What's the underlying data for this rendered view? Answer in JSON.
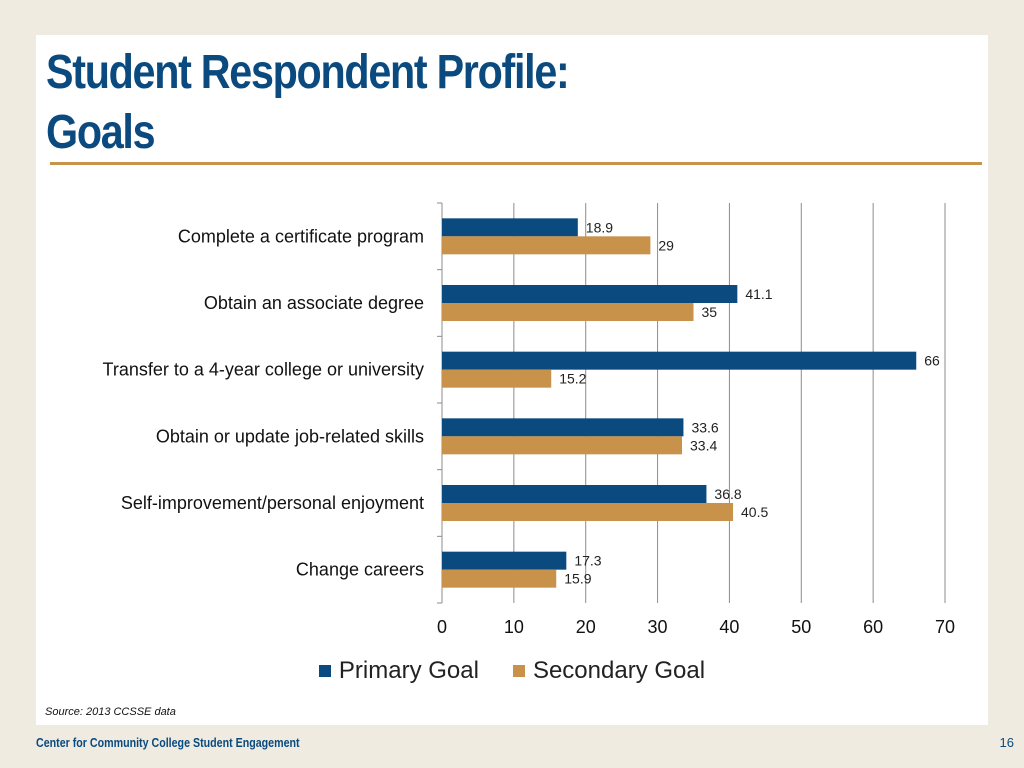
{
  "title_line1": "Student Respondent Profile:",
  "title_line2": "Goals",
  "source": "Source: 2013 CCSSE data",
  "footer": {
    "org": "Center for Community College Student Engagement",
    "page_number": "16"
  },
  "colors": {
    "primary": "#0b4a7e",
    "secondary": "#c8924a",
    "title": "#0a4a7f",
    "rule": "#c8944a"
  },
  "chart_data": {
    "type": "bar",
    "orientation": "horizontal",
    "categories": [
      "Complete a certificate program",
      "Obtain an associate degree",
      "Transfer to a 4-year college or university",
      "Obtain or update job-related skills",
      "Self-improvement/personal enjoyment",
      "Change careers"
    ],
    "series": [
      {
        "name": "Primary Goal",
        "values": [
          18.9,
          41.1,
          66,
          33.6,
          36.8,
          17.3
        ],
        "labels": [
          "18.9",
          "41.1",
          "66",
          "33.6",
          "36.8",
          "17.3"
        ]
      },
      {
        "name": "Secondary Goal",
        "values": [
          29,
          35,
          15.2,
          33.4,
          40.5,
          15.9
        ],
        "labels": [
          "29",
          "35",
          "15.2",
          "33.4",
          "40.5",
          "15.9"
        ]
      }
    ],
    "xlim": [
      0,
      70
    ],
    "xticks": [
      0,
      10,
      20,
      30,
      40,
      50,
      60,
      70
    ],
    "grid": true,
    "legend": "bottom"
  }
}
